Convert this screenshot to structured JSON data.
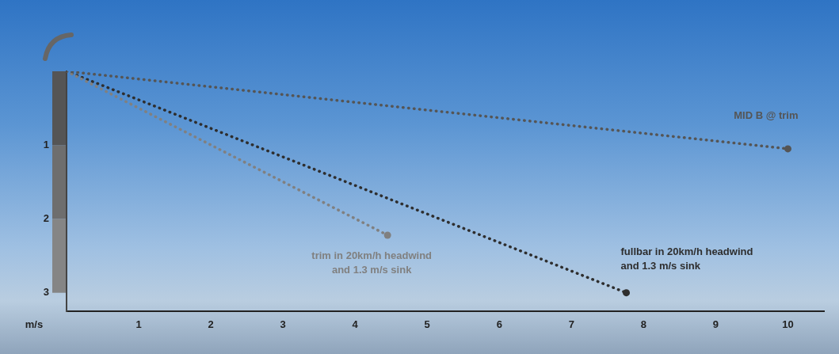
{
  "chart_data": {
    "type": "line",
    "ylabel": "m/s",
    "xlim": [
      0,
      10.5
    ],
    "xticks": [
      1,
      2,
      3,
      4,
      5,
      6,
      7,
      8,
      9,
      10
    ],
    "ylim": [
      3.25,
      0
    ],
    "yticks": [
      1,
      2,
      3
    ],
    "grid": false,
    "series": [
      {
        "name": "MID B @ trim",
        "color": "#555555",
        "x": [
          0,
          10
        ],
        "values": [
          0,
          1.05
        ],
        "line_style": "dotted",
        "marker": "circle"
      },
      {
        "name": "trim in 20km/h headwind\nand 1.3 m/s sink",
        "color": "#808080",
        "x": [
          0,
          4.45
        ],
        "values": [
          0,
          2.22
        ],
        "line_style": "dotted",
        "marker": "circle"
      },
      {
        "name": "fullbar in 20km/h headwind\nand 1.3 m/s sink",
        "color": "#2e2e2e",
        "x": [
          0,
          7.76
        ],
        "values": [
          0,
          3.0
        ],
        "line_style": "dotted",
        "marker": "circle"
      }
    ]
  }
}
